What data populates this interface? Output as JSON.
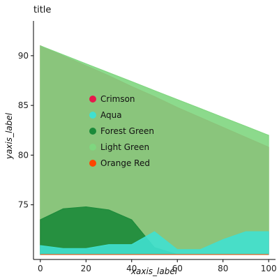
{
  "chart_data": {
    "type": "area",
    "title": "title",
    "xlabel": "xaxis_label",
    "ylabel": "yaxis_label",
    "xlim": [
      -3,
      103
    ],
    "ylim": [
      69.5,
      93.5
    ],
    "x_ticks": [
      0,
      20,
      40,
      60,
      80,
      100
    ],
    "y_ticks": [
      75,
      80,
      85,
      90
    ],
    "grid": false,
    "legend_position": "right",
    "series": [
      {
        "name": "Crimson",
        "color": "#E6194B",
        "x": [
          0,
          10,
          20,
          30,
          40,
          50,
          60,
          70,
          80,
          90,
          100
        ],
        "y": [
          91.0,
          90.0,
          89.0,
          88.0,
          86.9,
          85.9,
          84.8,
          83.8,
          82.8,
          81.8,
          80.8
        ]
      },
      {
        "name": "Light Green",
        "color": "#7FD67F",
        "x": [
          0,
          10,
          20,
          30,
          40,
          50,
          60,
          70,
          80,
          90,
          100
        ],
        "y": [
          91.0,
          90.1,
          89.2,
          88.3,
          87.4,
          86.5,
          85.6,
          84.7,
          83.8,
          82.9,
          82.0
        ]
      },
      {
        "name": "Forest Green",
        "color": "#1B8A3A",
        "x": [
          0,
          10,
          20,
          30,
          40,
          50,
          60,
          70,
          80,
          90,
          100
        ],
        "y": [
          73.5,
          74.6,
          74.8,
          74.5,
          73.5,
          70.7,
          70.0,
          70.0,
          70.0,
          70.0,
          70.0
        ]
      },
      {
        "name": "Aqua",
        "color": "#40E0D0",
        "x": [
          0,
          10,
          20,
          30,
          40,
          50,
          60,
          70,
          80,
          90,
          100
        ],
        "y": [
          70.9,
          70.6,
          70.6,
          71.0,
          71.0,
          72.3,
          70.5,
          70.5,
          71.5,
          72.3,
          72.3
        ]
      },
      {
        "name": "Orange Red",
        "color": "#FF4500",
        "x": [
          0,
          10,
          20,
          30,
          40,
          50,
          60,
          70,
          80,
          90,
          100
        ],
        "y": [
          70.0,
          70.0,
          70.0,
          70.0,
          70.0,
          70.0,
          70.0,
          70.0,
          70.0,
          70.0,
          70.0
        ]
      }
    ]
  }
}
